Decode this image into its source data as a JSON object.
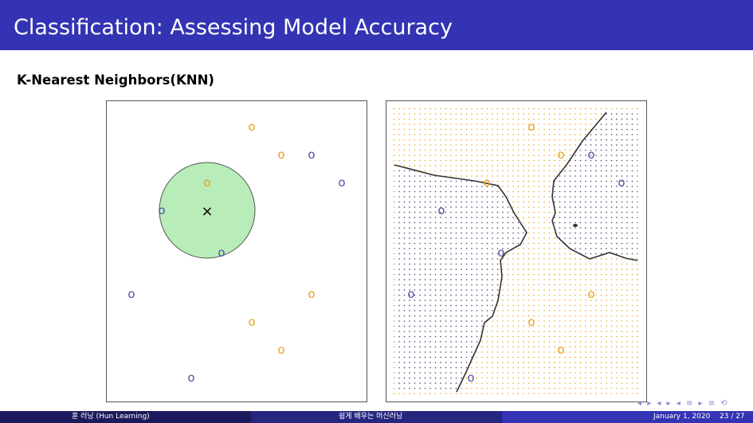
{
  "slide": {
    "title": "Classification: Assessing Model Accuracy",
    "subtitle": "K-Nearest Neighbors(KNN)"
  },
  "colors": {
    "orange": "#e8a020",
    "blue": "#5050a8",
    "circle_fill": "#b8ecb8",
    "title_bar": "#3333b3"
  },
  "left_panel": {
    "marker_glyph": "o",
    "query_glyph": "×",
    "neighbor_k": 3,
    "points": [
      {
        "class": "orange"
      },
      {
        "class": "orange"
      },
      {
        "class": "blue"
      },
      {
        "class": "orange"
      },
      {
        "class": "blue"
      },
      {
        "class": "blue"
      },
      {
        "class": "blue"
      },
      {
        "class": "blue"
      },
      {
        "class": "orange"
      },
      {
        "class": "orange"
      },
      {
        "class": "orange"
      },
      {
        "class": "blue"
      }
    ]
  },
  "right_panel": {
    "marker_glyph": "o"
  },
  "footer": {
    "author": "훈 러닝 (Hun Learning)",
    "course": "쉽게 배우는 머신러닝",
    "date": "January 1, 2020",
    "page": "23 / 27"
  },
  "nav_symbols": "◂ ▸ ◂ ▸ ◂ ≡ ▸ ≡ ⟲"
}
